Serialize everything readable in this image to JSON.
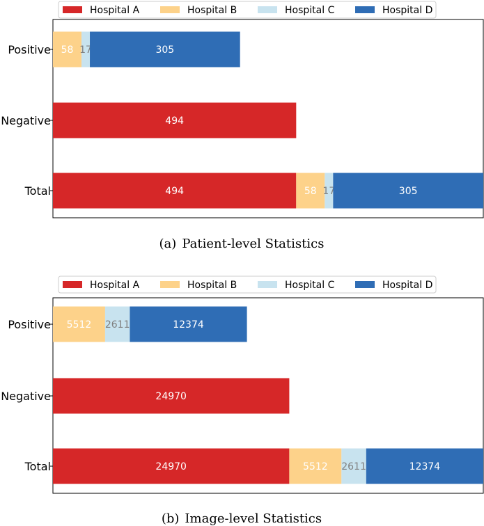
{
  "chart_data": [
    {
      "type": "bar",
      "orientation": "horizontal",
      "stacked": true,
      "caption_tag": "(a)",
      "caption_text": "Patient-level Statistics",
      "categories": [
        "Positive",
        "Negative",
        "Total"
      ],
      "series": [
        {
          "name": "Hospital A",
          "color": "#d62728",
          "label_color": "#ffffff",
          "values": [
            0,
            494,
            494
          ]
        },
        {
          "name": "Hospital B",
          "color": "#fdd28a",
          "label_color": "#ffffff",
          "values": [
            58,
            0,
            58
          ]
        },
        {
          "name": "Hospital C",
          "color": "#c8e3ef",
          "label_color": "#808080",
          "values": [
            17,
            0,
            17
          ]
        },
        {
          "name": "Hospital D",
          "color": "#2f6db5",
          "label_color": "#ffffff",
          "values": [
            305,
            0,
            305
          ]
        }
      ],
      "xlim": [
        0,
        874
      ],
      "legend_position": "top",
      "grid": false
    },
    {
      "type": "bar",
      "orientation": "horizontal",
      "stacked": true,
      "caption_tag": "(b)",
      "caption_text": "Image-level Statistics",
      "categories": [
        "Positive",
        "Negative",
        "Total"
      ],
      "series": [
        {
          "name": "Hospital A",
          "color": "#d62728",
          "label_color": "#ffffff",
          "values": [
            0,
            24970,
            24970
          ]
        },
        {
          "name": "Hospital B",
          "color": "#fdd28a",
          "label_color": "#ffffff",
          "values": [
            5512,
            0,
            5512
          ]
        },
        {
          "name": "Hospital C",
          "color": "#c8e3ef",
          "label_color": "#808080",
          "values": [
            2611,
            0,
            2611
          ]
        },
        {
          "name": "Hospital D",
          "color": "#2f6db5",
          "label_color": "#ffffff",
          "values": [
            12374,
            0,
            12374
          ]
        }
      ],
      "xlim": [
        0,
        45467
      ],
      "legend_position": "top",
      "grid": false
    }
  ]
}
